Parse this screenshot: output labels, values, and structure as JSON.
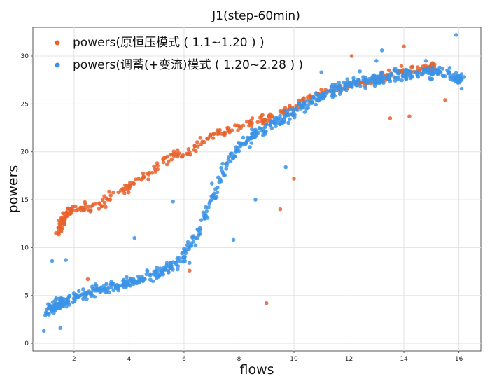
{
  "chart_data": {
    "type": "scatter",
    "title": "J1(step-60min)",
    "xlabel": "flows",
    "ylabel": "powers",
    "xlim": [
      0.5,
      16.8
    ],
    "ylim": [
      -0.8,
      33
    ],
    "xticks": [
      2,
      4,
      6,
      8,
      10,
      12,
      14,
      16
    ],
    "yticks": [
      0,
      5,
      10,
      15,
      20,
      25,
      30
    ],
    "grid": true,
    "legend_position": "top-left",
    "series": [
      {
        "name": "powers(原恒压模式 ( 1.1~1.20 ) )",
        "color": "#e8622c",
        "cluster_points": [
          [
            1.4,
            11.5
          ],
          [
            1.5,
            12.2
          ],
          [
            1.6,
            12.8
          ],
          [
            1.7,
            13.3
          ],
          [
            1.9,
            13.9
          ],
          [
            2.2,
            14.2
          ],
          [
            2.6,
            14.1
          ],
          [
            3.0,
            14.6
          ],
          [
            3.5,
            15.6
          ],
          [
            4.0,
            16.3
          ],
          [
            4.6,
            17.5
          ],
          [
            5.0,
            18.4
          ],
          [
            5.5,
            19.6
          ],
          [
            6.0,
            19.8
          ],
          [
            6.5,
            20.6
          ],
          [
            7.0,
            21.6
          ],
          [
            7.5,
            22.0
          ],
          [
            8.0,
            22.6
          ],
          [
            8.5,
            23.1
          ],
          [
            9.0,
            23.4
          ],
          [
            9.5,
            24.2
          ],
          [
            10.0,
            24.7
          ],
          [
            10.5,
            25.6
          ],
          [
            11.0,
            26.1
          ],
          [
            11.5,
            26.6
          ],
          [
            12.0,
            27.0
          ],
          [
            12.5,
            27.2
          ],
          [
            13.0,
            27.6
          ],
          [
            13.5,
            28.2
          ],
          [
            14.0,
            28.4
          ],
          [
            14.5,
            28.6
          ],
          [
            15.0,
            28.8
          ]
        ],
        "extra_points": [
          [
            9.0,
            4.2
          ],
          [
            9.5,
            14.0
          ],
          [
            10.0,
            17.2
          ],
          [
            12.1,
            30.0
          ],
          [
            14.0,
            31.0
          ],
          [
            15.5,
            25.4
          ],
          [
            14.2,
            23.7
          ],
          [
            13.5,
            23.5
          ],
          [
            6.2,
            7.6
          ],
          [
            2.5,
            6.7
          ]
        ]
      },
      {
        "name": "powers(调蓄(+变流)模式 ( 1.20~2.28 ) )",
        "color": "#3b93e6",
        "cluster_points": [
          [
            1.0,
            3.2
          ],
          [
            1.2,
            3.8
          ],
          [
            1.4,
            4.0
          ],
          [
            1.6,
            4.3
          ],
          [
            2.0,
            4.8
          ],
          [
            2.5,
            5.2
          ],
          [
            3.0,
            5.7
          ],
          [
            3.5,
            5.9
          ],
          [
            4.0,
            6.4
          ],
          [
            4.5,
            6.8
          ],
          [
            5.0,
            7.2
          ],
          [
            5.5,
            8.0
          ],
          [
            6.0,
            9.0
          ],
          [
            6.5,
            11.5
          ],
          [
            7.0,
            15.2
          ],
          [
            7.5,
            18.5
          ],
          [
            8.0,
            20.5
          ],
          [
            8.5,
            21.8
          ],
          [
            9.0,
            22.6
          ],
          [
            9.5,
            23.4
          ],
          [
            10.0,
            24.2
          ],
          [
            10.5,
            25.0
          ],
          [
            11.0,
            25.8
          ],
          [
            11.5,
            26.6
          ],
          [
            12.0,
            27.0
          ],
          [
            12.5,
            27.3
          ],
          [
            13.0,
            27.6
          ],
          [
            13.5,
            27.9
          ],
          [
            14.0,
            28.0
          ],
          [
            14.5,
            28.3
          ],
          [
            15.0,
            28.4
          ],
          [
            15.5,
            28.2
          ],
          [
            16.0,
            27.6
          ]
        ],
        "extra_points": [
          [
            15.9,
            32.2
          ],
          [
            16.1,
            26.6
          ],
          [
            13.2,
            30.6
          ],
          [
            12.4,
            28.4
          ],
          [
            9.7,
            18.4
          ],
          [
            8.6,
            15.0
          ],
          [
            7.8,
            10.8
          ],
          [
            1.2,
            8.6
          ],
          [
            1.7,
            8.7
          ],
          [
            1.5,
            1.6
          ],
          [
            0.9,
            1.3
          ],
          [
            6.2,
            8.4
          ],
          [
            5.6,
            14.8
          ],
          [
            4.2,
            11.0
          ],
          [
            11.0,
            28.3
          ],
          [
            13.0,
            29.5
          ],
          [
            14.8,
            29.5
          ],
          [
            15.3,
            28.8
          ]
        ]
      }
    ]
  }
}
